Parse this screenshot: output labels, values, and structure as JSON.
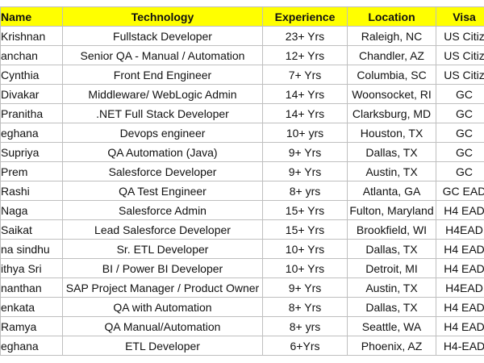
{
  "table": {
    "headers": [
      "Name",
      "Technology",
      "Experience",
      "Location",
      "Visa"
    ],
    "rows": [
      [
        "Krishnan",
        "Fullstack Developer",
        "23+ Yrs",
        "Raleigh, NC",
        "US Citiz"
      ],
      [
        "anchan",
        "Senior QA - Manual / Automation",
        "12+ Yrs",
        "Chandler, AZ",
        "US Citiz"
      ],
      [
        "Cynthia",
        "Front End Engineer",
        "7+ Yrs",
        "Columbia, SC",
        "US Citiz"
      ],
      [
        "Divakar",
        "Middleware/ WebLogic Admin",
        "14+ Yrs",
        "Woonsocket, RI",
        "GC"
      ],
      [
        "Pranitha",
        ".NET Full Stack Developer",
        "14+ Yrs",
        "Clarksburg, MD",
        "GC"
      ],
      [
        "eghana",
        "Devops engineer",
        "10+ yrs",
        "Houston, TX",
        "GC"
      ],
      [
        "Supriya",
        "QA Automation (Java)",
        "9+ Yrs",
        "Dallas, TX",
        "GC"
      ],
      [
        "Prem",
        "Salesforce Developer",
        "9+ Yrs",
        "Austin, TX",
        "GC"
      ],
      [
        "Rashi",
        "QA Test Engineer",
        "8+ yrs",
        "Atlanta, GA",
        "GC EAD"
      ],
      [
        "Naga",
        "Salesforce Admin",
        "15+ Yrs",
        "Fulton, Maryland",
        "H4 EAD"
      ],
      [
        "Saikat",
        "Lead Salesforce Developer",
        "15+ Yrs",
        "Brookfield, WI",
        "H4EAD"
      ],
      [
        "na sindhu",
        "Sr. ETL Developer",
        "10+ Yrs",
        "Dallas, TX",
        "H4 EAD"
      ],
      [
        "ithya Sri",
        "BI / Power BI Developer",
        "10+ Yrs",
        "Detroit, MI",
        "H4 EAD"
      ],
      [
        "nanthan",
        "SAP Project Manager / Product Owner",
        "9+ Yrs",
        "Austin, TX",
        "H4EAD"
      ],
      [
        "enkata",
        "QA with Automation",
        "8+ Yrs",
        "Dallas, TX",
        "H4 EAD"
      ],
      [
        "Ramya",
        "QA Manual/Automation",
        "8+ yrs",
        "Seattle, WA",
        "H4 EAD"
      ],
      [
        "eghana",
        "ETL Developer",
        "6+Yrs",
        "Phoenix, AZ",
        "H4-EAD"
      ]
    ]
  }
}
